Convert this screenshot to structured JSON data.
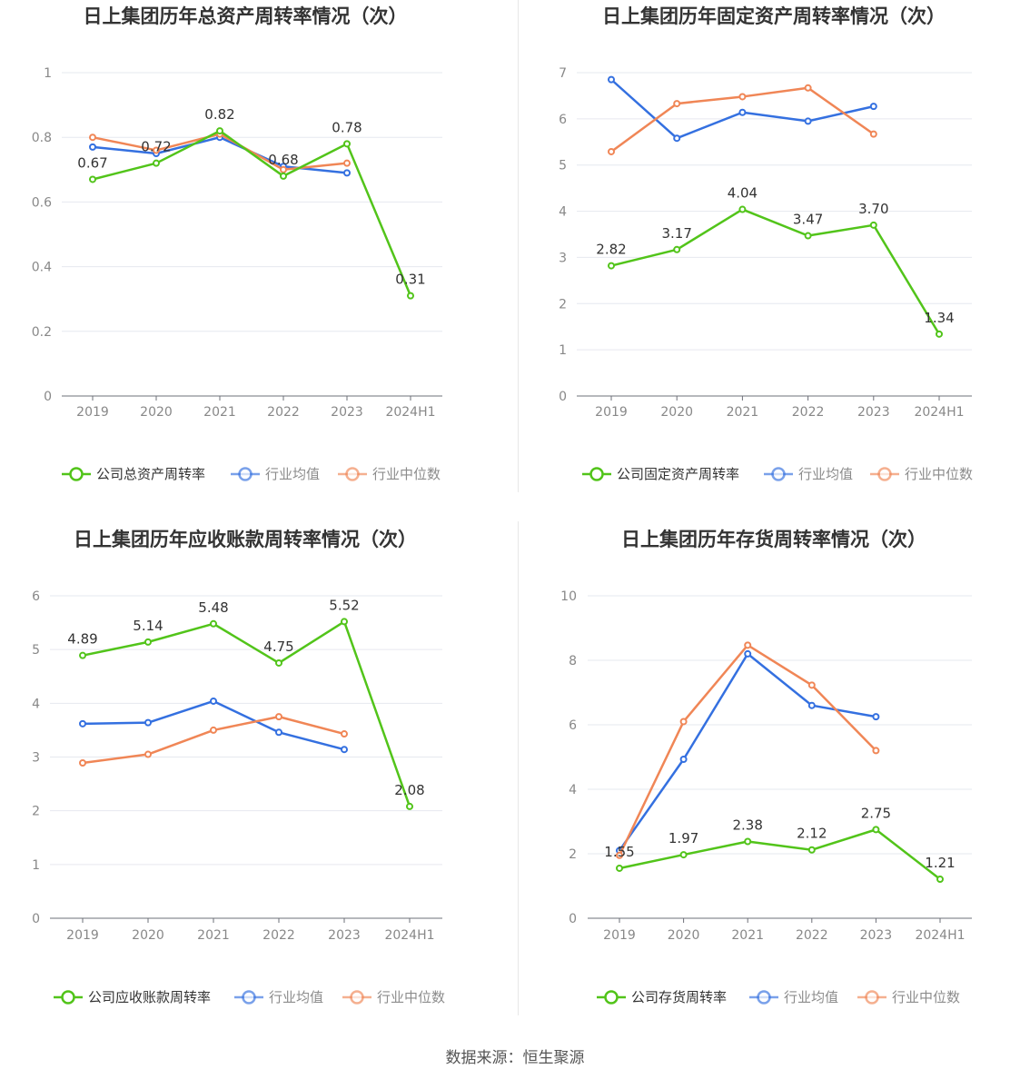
{
  "source": "数据来源：恒生聚源",
  "colors": {
    "company": "#52c41a",
    "avg": "#3470e0",
    "median": "#f08656",
    "grid": "#e6e8ef",
    "axis": "#888888",
    "text": "#333333"
  },
  "chart_data": [
    {
      "type": "line",
      "title": "日上集团历年总资产周转率情况（次）",
      "categories": [
        "2019",
        "2020",
        "2021",
        "2022",
        "2023",
        "2024H1"
      ],
      "yticks": [
        "0",
        "0.2",
        "0.4",
        "0.6",
        "0.8",
        "1"
      ],
      "ylim": [
        0,
        1
      ],
      "series": [
        {
          "name": "公司总资产周转率",
          "key": "company",
          "values": [
            0.67,
            0.72,
            0.82,
            0.68,
            0.78,
            0.31
          ],
          "labels": [
            "0.67",
            "0.72",
            "0.82",
            "0.68",
            "0.78",
            "0.31"
          ]
        },
        {
          "name": "行业均值",
          "key": "avg",
          "values": [
            0.77,
            0.75,
            0.8,
            0.71,
            0.69,
            null
          ]
        },
        {
          "name": "行业中位数",
          "key": "median",
          "values": [
            0.8,
            0.76,
            0.81,
            0.7,
            0.72,
            null
          ]
        }
      ]
    },
    {
      "type": "line",
      "title": "日上集团历年固定资产周转率情况（次）",
      "categories": [
        "2019",
        "2020",
        "2021",
        "2022",
        "2023",
        "2024H1"
      ],
      "yticks": [
        "0",
        "1",
        "2",
        "3",
        "4",
        "5",
        "6",
        "7"
      ],
      "ylim": [
        0,
        7
      ],
      "series": [
        {
          "name": "公司固定资产周转率",
          "key": "company",
          "values": [
            2.82,
            3.17,
            4.04,
            3.47,
            3.7,
            1.34
          ],
          "labels": [
            "2.82",
            "3.17",
            "4.04",
            "3.47",
            "3.70",
            "1.34"
          ]
        },
        {
          "name": "行业均值",
          "key": "avg",
          "values": [
            6.85,
            5.58,
            6.14,
            5.95,
            6.27,
            null
          ]
        },
        {
          "name": "行业中位数",
          "key": "median",
          "values": [
            5.29,
            6.33,
            6.48,
            6.67,
            5.67,
            null
          ]
        }
      ]
    },
    {
      "type": "line",
      "title": "日上集团历年应收账款周转率情况（次）",
      "categories": [
        "2019",
        "2020",
        "2021",
        "2022",
        "2023",
        "2024H1"
      ],
      "yticks": [
        "0",
        "1",
        "2",
        "3",
        "4",
        "5",
        "6"
      ],
      "ylim": [
        0,
        6
      ],
      "series": [
        {
          "name": "公司应收账款周转率",
          "key": "company",
          "values": [
            4.89,
            5.14,
            5.48,
            4.75,
            5.52,
            2.08
          ],
          "labels": [
            "4.89",
            "5.14",
            "5.48",
            "4.75",
            "5.52",
            "2.08"
          ]
        },
        {
          "name": "行业均值",
          "key": "avg",
          "values": [
            3.62,
            3.64,
            4.04,
            3.46,
            3.14,
            null
          ]
        },
        {
          "name": "行业中位数",
          "key": "median",
          "values": [
            2.89,
            3.05,
            3.5,
            3.75,
            3.43,
            null
          ]
        }
      ]
    },
    {
      "type": "line",
      "title": "日上集团历年存货周转率情况（次）",
      "categories": [
        "2019",
        "2020",
        "2021",
        "2022",
        "2023",
        "2024H1"
      ],
      "yticks": [
        "0",
        "2",
        "4",
        "6",
        "8",
        "10"
      ],
      "ylim": [
        0,
        10
      ],
      "series": [
        {
          "name": "公司存货周转率",
          "key": "company",
          "values": [
            1.55,
            1.97,
            2.38,
            2.12,
            2.75,
            1.21
          ],
          "labels": [
            "1.55",
            "1.97",
            "2.38",
            "2.12",
            "2.75",
            "1.21"
          ]
        },
        {
          "name": "行业均值",
          "key": "avg",
          "values": [
            2.1,
            4.93,
            8.2,
            6.6,
            6.25,
            null
          ]
        },
        {
          "name": "行业中位数",
          "key": "median",
          "values": [
            1.95,
            6.1,
            8.47,
            7.23,
            5.2,
            null
          ]
        }
      ]
    }
  ]
}
